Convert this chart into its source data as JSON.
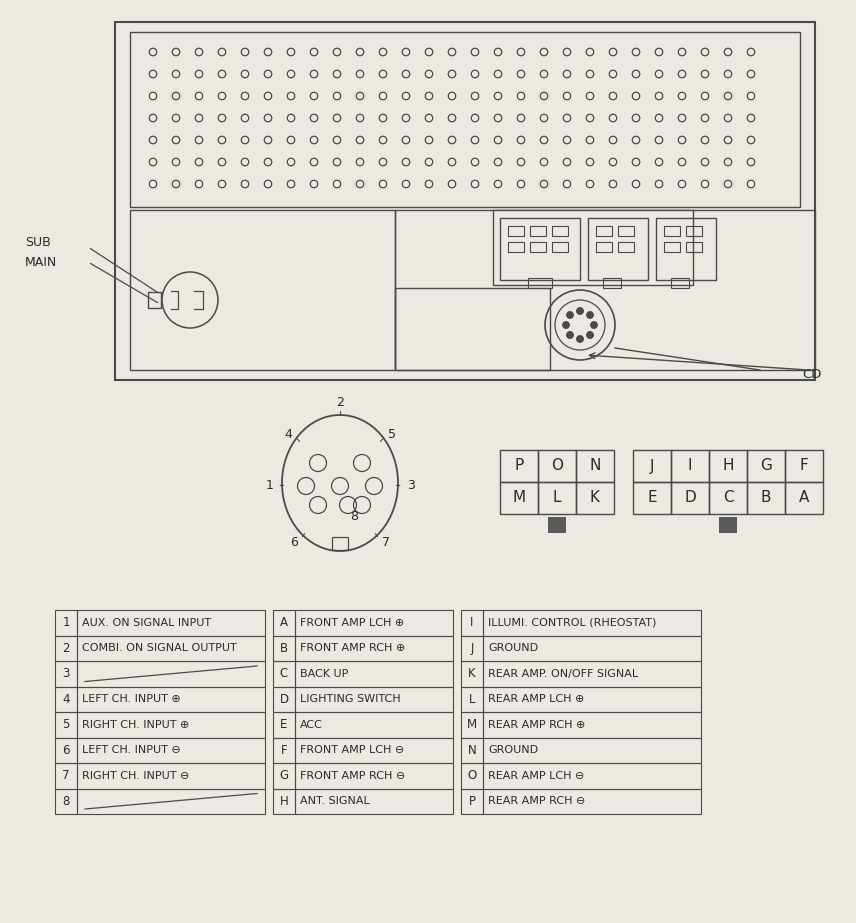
{
  "bg_color": "#ece9e3",
  "line_color": "#4a4a4a",
  "text_color": "#2a2a2a",
  "table1": {
    "rows": [
      [
        "1",
        "AUX. ON SIGNAL INPUT"
      ],
      [
        "2",
        "COMBI. ON SIGNAL OUTPUT"
      ],
      [
        "3",
        ""
      ],
      [
        "4",
        "LEFT CH. INPUT ⊕"
      ],
      [
        "5",
        "RIGHT CH. INPUT ⊕"
      ],
      [
        "6",
        "LEFT CH. INPUT ⊖"
      ],
      [
        "7",
        "RIGHT CH. INPUT ⊖"
      ],
      [
        "8",
        ""
      ]
    ]
  },
  "table2": {
    "rows": [
      [
        "A",
        "FRONT AMP LCH ⊕"
      ],
      [
        "B",
        "FRONT AMP RCH ⊕"
      ],
      [
        "C",
        "BACK UP"
      ],
      [
        "D",
        "LIGHTING SWITCH"
      ],
      [
        "E",
        "ACC"
      ],
      [
        "F",
        "FRONT AMP LCH ⊖"
      ],
      [
        "G",
        "FRONT AMP RCH ⊖"
      ],
      [
        "H",
        "ANT. SIGNAL"
      ]
    ]
  },
  "table3": {
    "rows": [
      [
        "I",
        "ILLUMI. CONTROL (RHEOSTAT)"
      ],
      [
        "J",
        "GROUND"
      ],
      [
        "K",
        "REAR AMP. ON/OFF SIGNAL"
      ],
      [
        "L",
        "REAR AMP LCH ⊕"
      ],
      [
        "M",
        "REAR AMP RCH ⊕"
      ],
      [
        "N",
        "GROUND"
      ],
      [
        "O",
        "REAR AMP LCH ⊖"
      ],
      [
        "P",
        "REAR AMP RCH ⊖"
      ]
    ]
  },
  "connector_grid1": [
    [
      "P",
      "O",
      "N"
    ],
    [
      "M",
      "L",
      "K"
    ]
  ],
  "connector_grid2": [
    [
      "J",
      "I",
      "H",
      "G",
      "F"
    ],
    [
      "E",
      "D",
      "C",
      "B",
      "A"
    ]
  ],
  "sq1_col": 1,
  "sq2_col": 2
}
